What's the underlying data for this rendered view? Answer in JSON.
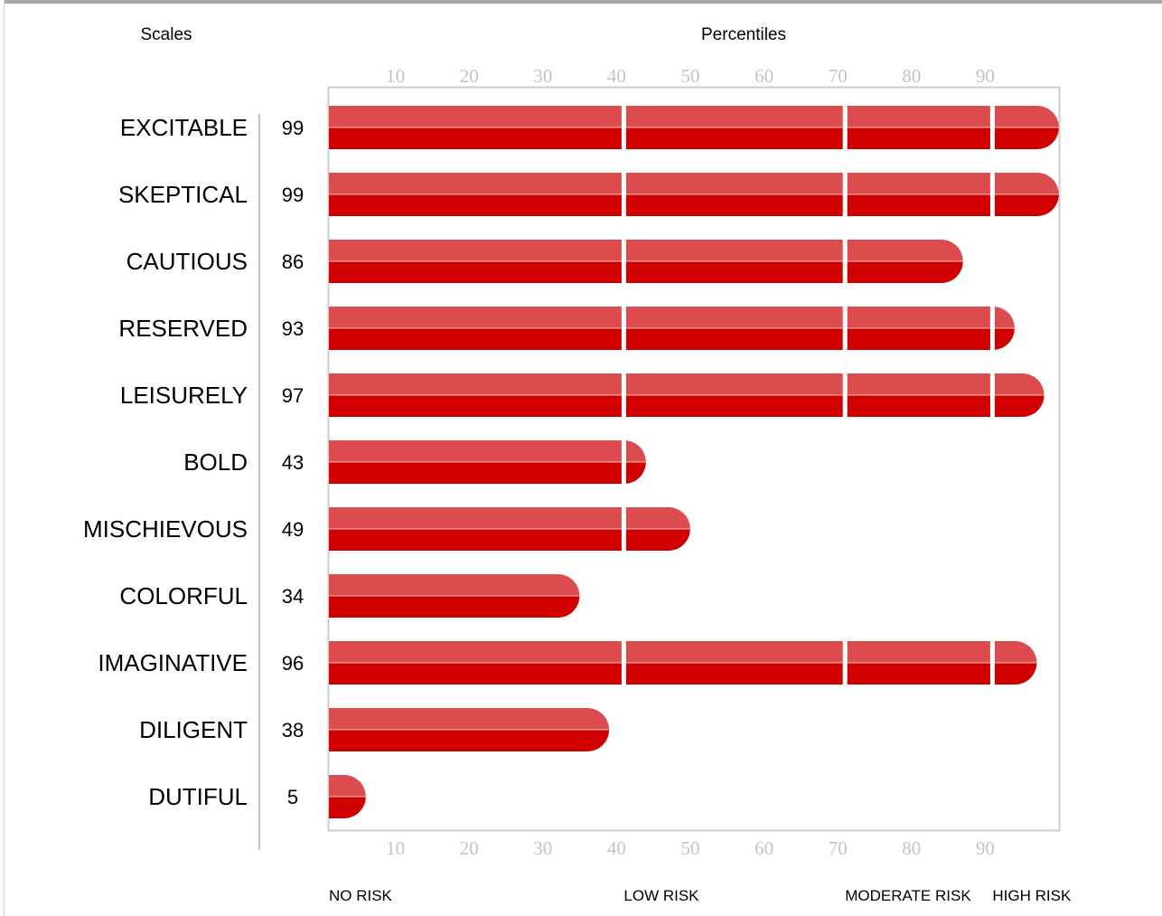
{
  "chart_data": {
    "type": "bar",
    "orientation": "horizontal",
    "left_header": "Scales",
    "title": "Percentiles",
    "categories": [
      "EXCITABLE",
      "SKEPTICAL",
      "CAUTIOUS",
      "RESERVED",
      "LEISURELY",
      "BOLD",
      "MISCHIEVOUS",
      "COLORFUL",
      "IMAGINATIVE",
      "DILIGENT",
      "DUTIFUL"
    ],
    "values": [
      99,
      99,
      86,
      93,
      97,
      43,
      49,
      34,
      96,
      38,
      5
    ],
    "value_labels": [
      "99",
      "99",
      "86",
      "93",
      "97",
      "43",
      "49",
      "34",
      "96",
      "38",
      "5"
    ],
    "xlim": [
      0,
      100
    ],
    "ticks": [
      10,
      20,
      30,
      40,
      50,
      60,
      70,
      80,
      90
    ],
    "tick_labels": [
      "10",
      "20",
      "30",
      "40",
      "50",
      "60",
      "70",
      "80",
      "90"
    ],
    "segment_breaks": [
      40,
      70,
      90
    ],
    "risk_zones": [
      {
        "label": "NO RISK",
        "start": 0
      },
      {
        "label": "LOW RISK",
        "start": 40
      },
      {
        "label": "MODERATE RISK",
        "start": 70
      },
      {
        "label": "HIGH RISK",
        "start": 90
      }
    ],
    "colors": {
      "bar_top": "#dc4b4e",
      "bar_bottom": "#d00000",
      "tick_label": "#c4c4c4",
      "plot_border": "#cccccc"
    },
    "grid": false
  }
}
